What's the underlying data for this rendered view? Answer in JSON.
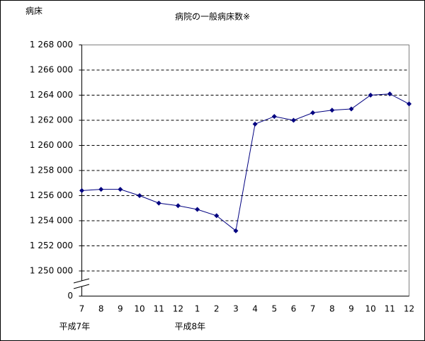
{
  "chart_data": {
    "type": "line",
    "title": "病院の一般病床数※",
    "ylabel": "病床",
    "categories": [
      "7",
      "8",
      "9",
      "10",
      "11",
      "12",
      "1",
      "2",
      "3",
      "4",
      "5",
      "6",
      "7",
      "8",
      "9",
      "10",
      "11",
      "12"
    ],
    "year_labels": [
      "平成7年",
      null,
      null,
      null,
      null,
      null,
      "平成8年",
      null,
      null,
      null,
      null,
      null,
      null,
      null,
      null,
      null,
      null,
      null
    ],
    "series": [
      {
        "color": "#000080",
        "values": [
          1256400,
          1256500,
          1256500,
          1256000,
          1255400,
          1255200,
          1254900,
          1254400,
          1253200,
          1261700,
          1262300,
          1262000,
          1262600,
          1262800,
          1262900,
          1264000,
          1264100,
          1263300
        ]
      }
    ],
    "ylim": [
      1248000,
      1268000
    ],
    "axis_break": true,
    "yticks": [
      0,
      {
        "value": 1250000,
        "label": "1 250 000"
      },
      {
        "value": 1252000,
        "label": "1 252 000"
      },
      {
        "value": 1254000,
        "label": "1 254 000"
      },
      {
        "value": 1256000,
        "label": "1 256 000"
      },
      {
        "value": 1258000,
        "label": "1 258 000"
      },
      {
        "value": 1260000,
        "label": "1 260 000"
      },
      {
        "value": 1262000,
        "label": "1 262 000"
      },
      {
        "value": 1264000,
        "label": "1 264 000"
      },
      {
        "value": 1266000,
        "label": "1 266 000"
      },
      {
        "value": 1268000,
        "label": "1 268 000"
      }
    ],
    "grid": true
  }
}
